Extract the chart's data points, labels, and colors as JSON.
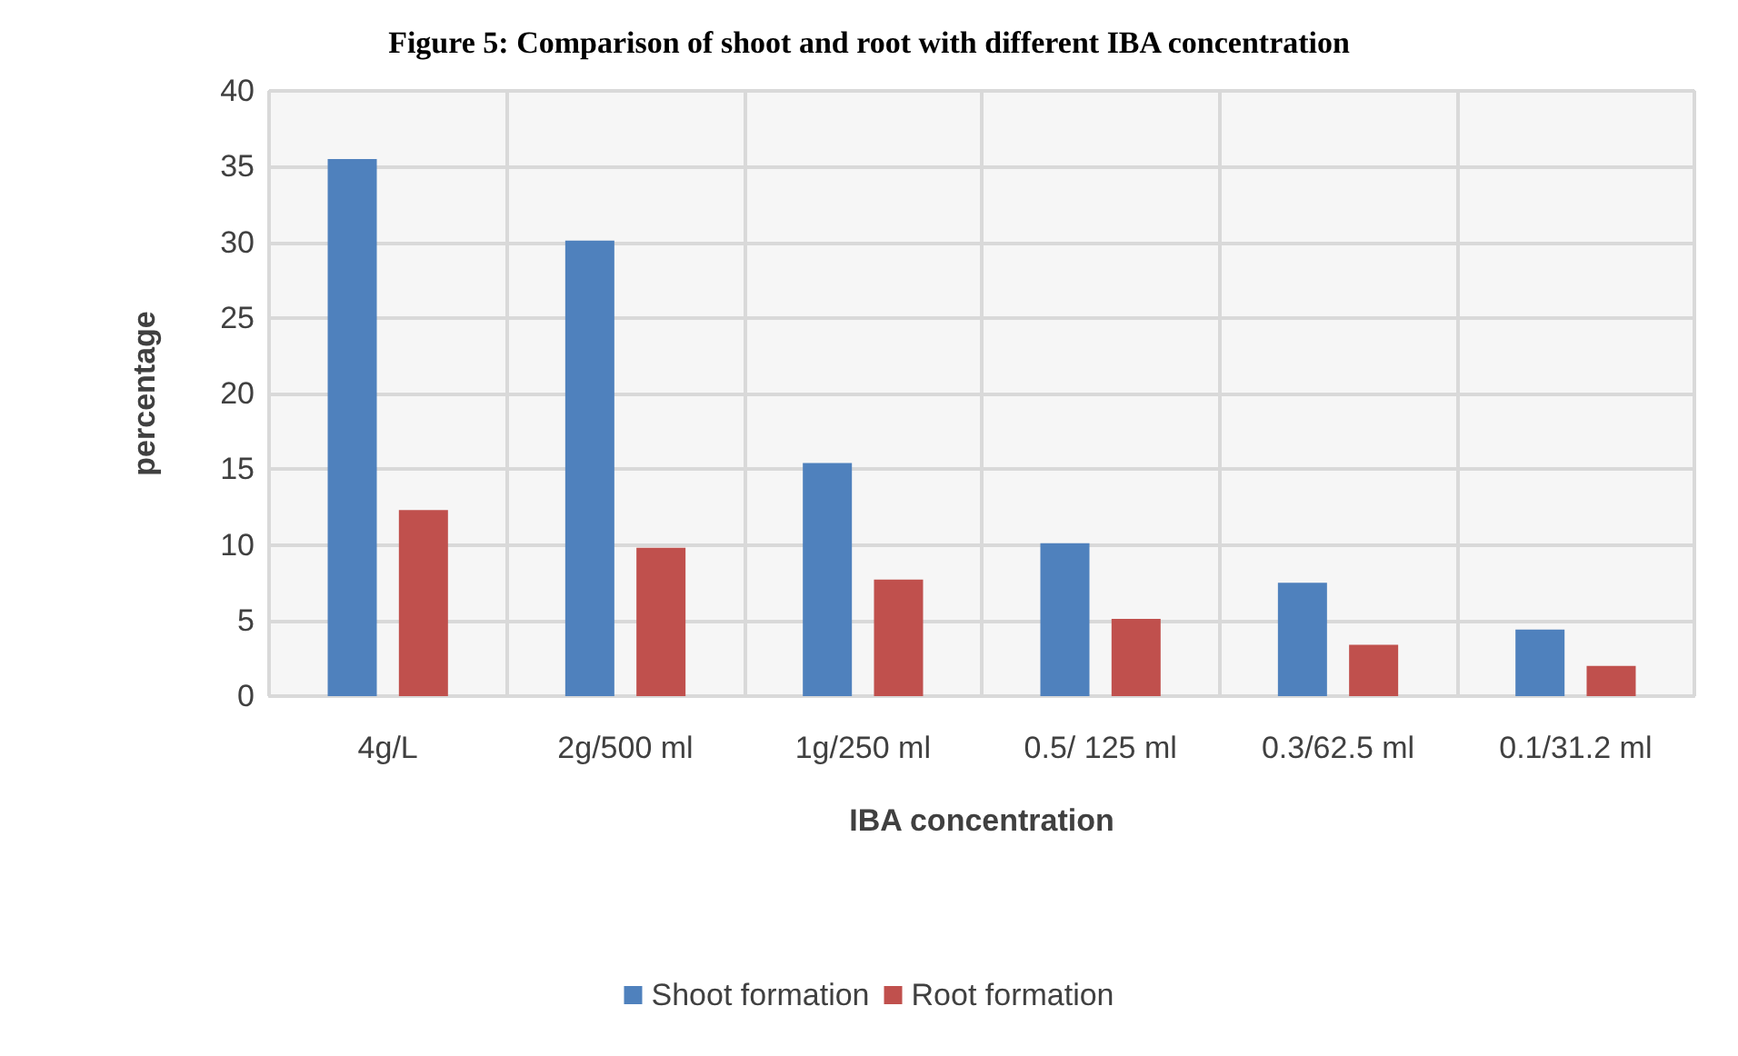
{
  "chart_data": {
    "type": "bar",
    "title": "Figure 5: Comparison of shoot and root with different IBA concentration",
    "xlabel": "IBA concentration",
    "ylabel": "percentage",
    "categories": [
      "4g/L",
      "2g/500 ml",
      "1g/250 ml",
      "0.5/ 125 ml",
      "0.3/62.5 ml",
      "0.1/31.2 ml"
    ],
    "series": [
      {
        "name": "Shoot formation",
        "color": "#4f81bd",
        "values": [
          35.5,
          30.1,
          15.4,
          10.1,
          7.5,
          4.4
        ]
      },
      {
        "name": "Root formation",
        "color": "#c0504d",
        "values": [
          12.3,
          9.8,
          7.7,
          5.1,
          3.4,
          2.0
        ]
      }
    ],
    "ylim": [
      0,
      40
    ],
    "yticks": [
      0,
      5,
      10,
      15,
      20,
      25,
      30,
      35,
      40
    ],
    "grid": true,
    "legend": "bottom"
  }
}
